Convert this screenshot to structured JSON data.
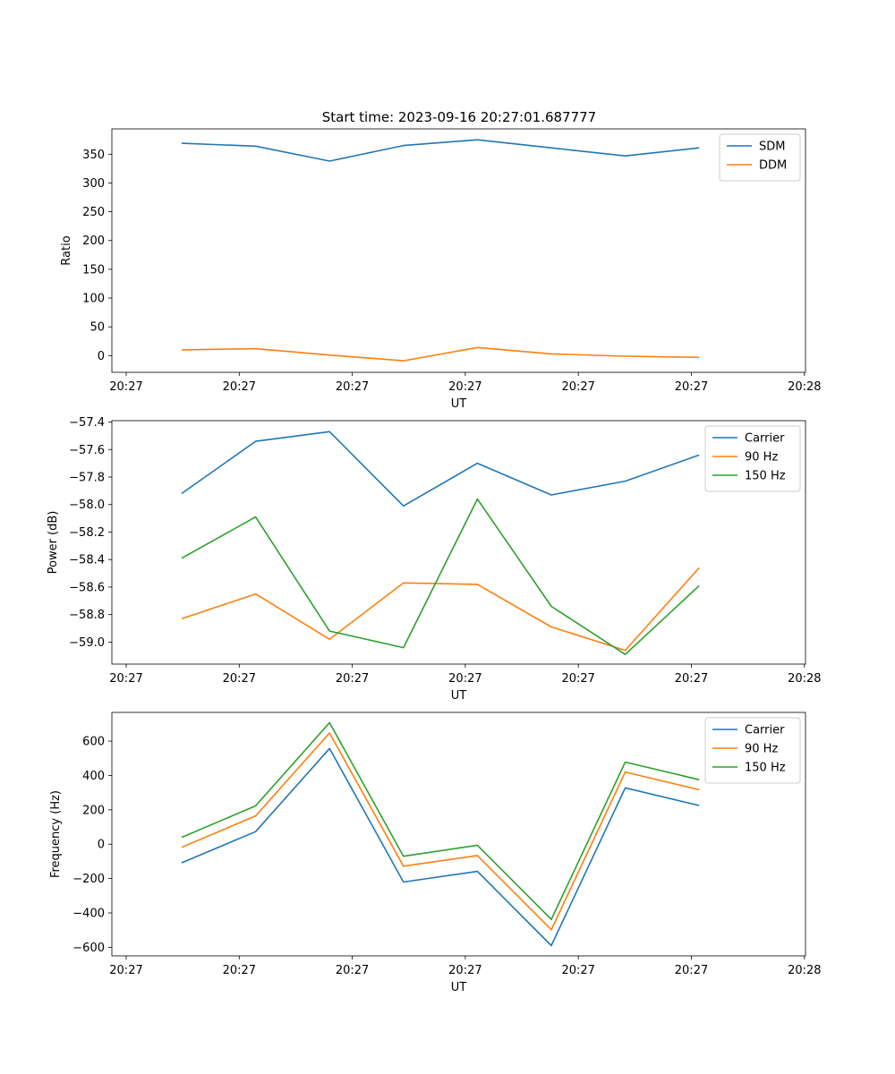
{
  "title": "Start time: 2023-09-16 20:27:01.687777",
  "colors": {
    "blue": "#1f77b4",
    "orange": "#ff7f0e",
    "green": "#2ca02c"
  },
  "chart_data": [
    {
      "type": "line",
      "xlabel": "UT",
      "ylabel": "Ratio",
      "x_tick_labels": [
        "20:27",
        "20:27",
        "20:27",
        "20:27",
        "20:27",
        "20:27",
        "20:28"
      ],
      "ylim": [
        -29,
        394
      ],
      "yticks": [
        0,
        50,
        100,
        150,
        200,
        250,
        300,
        350
      ],
      "yticklabels": [
        "0",
        "50",
        "100",
        "150",
        "200",
        "250",
        "300",
        "350"
      ],
      "legend_loc": "upper right",
      "series": [
        {
          "name": "SDM",
          "color": "#1f77b4",
          "values": [
            369,
            364,
            338,
            365,
            375,
            361,
            347,
            361
          ]
        },
        {
          "name": "DDM",
          "color": "#ff7f0e",
          "values": [
            10,
            12,
            1,
            -9,
            14,
            3,
            -1,
            -3
          ]
        }
      ]
    },
    {
      "type": "line",
      "xlabel": "UT",
      "ylabel": "Power (dB)",
      "x_tick_labels": [
        "20:27",
        "20:27",
        "20:27",
        "20:27",
        "20:27",
        "20:27",
        "20:28"
      ],
      "ylim": [
        -59.16,
        -57.39
      ],
      "yticks": [
        -59.0,
        -58.8,
        -58.6,
        -58.4,
        -58.2,
        -58.0,
        -57.8,
        -57.6,
        -57.4
      ],
      "yticklabels": [
        "−59.0",
        "−58.8",
        "−58.6",
        "−58.4",
        "−58.2",
        "−58.0",
        "−57.8",
        "−57.6",
        "−57.4"
      ],
      "legend_loc": "upper right",
      "series": [
        {
          "name": "Carrier",
          "color": "#1f77b4",
          "values": [
            -57.92,
            -57.54,
            -57.47,
            -58.01,
            -57.7,
            -57.93,
            -57.83,
            -57.64
          ]
        },
        {
          "name": "90 Hz",
          "color": "#ff7f0e",
          "values": [
            -58.83,
            -58.65,
            -58.98,
            -58.57,
            -58.58,
            -58.89,
            -59.06,
            -58.46
          ]
        },
        {
          "name": "150 Hz",
          "color": "#2ca02c",
          "values": [
            -58.39,
            -58.09,
            -58.92,
            -59.04,
            -57.96,
            -58.74,
            -59.09,
            -58.59
          ]
        }
      ]
    },
    {
      "type": "line",
      "xlabel": "UT",
      "ylabel": "Frequency (Hz)",
      "x_tick_labels": [
        "20:27",
        "20:27",
        "20:27",
        "20:27",
        "20:27",
        "20:27",
        "20:28"
      ],
      "ylim": [
        -650,
        767
      ],
      "yticks": [
        -600,
        -400,
        -200,
        0,
        200,
        400,
        600
      ],
      "yticklabels": [
        "−600",
        "−400",
        "−200",
        "0",
        "200",
        "400",
        "600"
      ],
      "legend_loc": "upper right",
      "series": [
        {
          "name": "Carrier",
          "color": "#1f77b4",
          "values": [
            -108,
            73,
            557,
            -220,
            -158,
            -590,
            328,
            225
          ]
        },
        {
          "name": "90 Hz",
          "color": "#ff7f0e",
          "values": [
            -18,
            165,
            647,
            -128,
            -66,
            -498,
            420,
            317
          ]
        },
        {
          "name": "150 Hz",
          "color": "#2ca02c",
          "values": [
            40,
            223,
            707,
            -70,
            -6,
            -438,
            478,
            375
          ]
        }
      ]
    }
  ]
}
